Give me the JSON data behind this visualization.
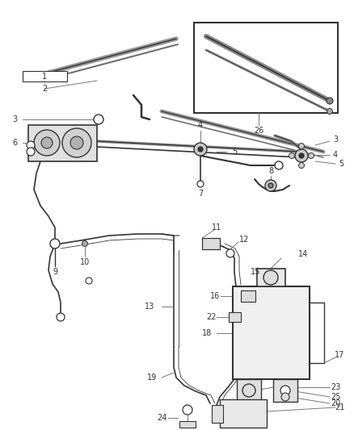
{
  "bg_color": "#ffffff",
  "fig_width": 4.38,
  "fig_height": 5.33,
  "dpi": 100,
  "line_color": "#333333",
  "gray": "#777777",
  "light_gray": "#aaaaaa"
}
